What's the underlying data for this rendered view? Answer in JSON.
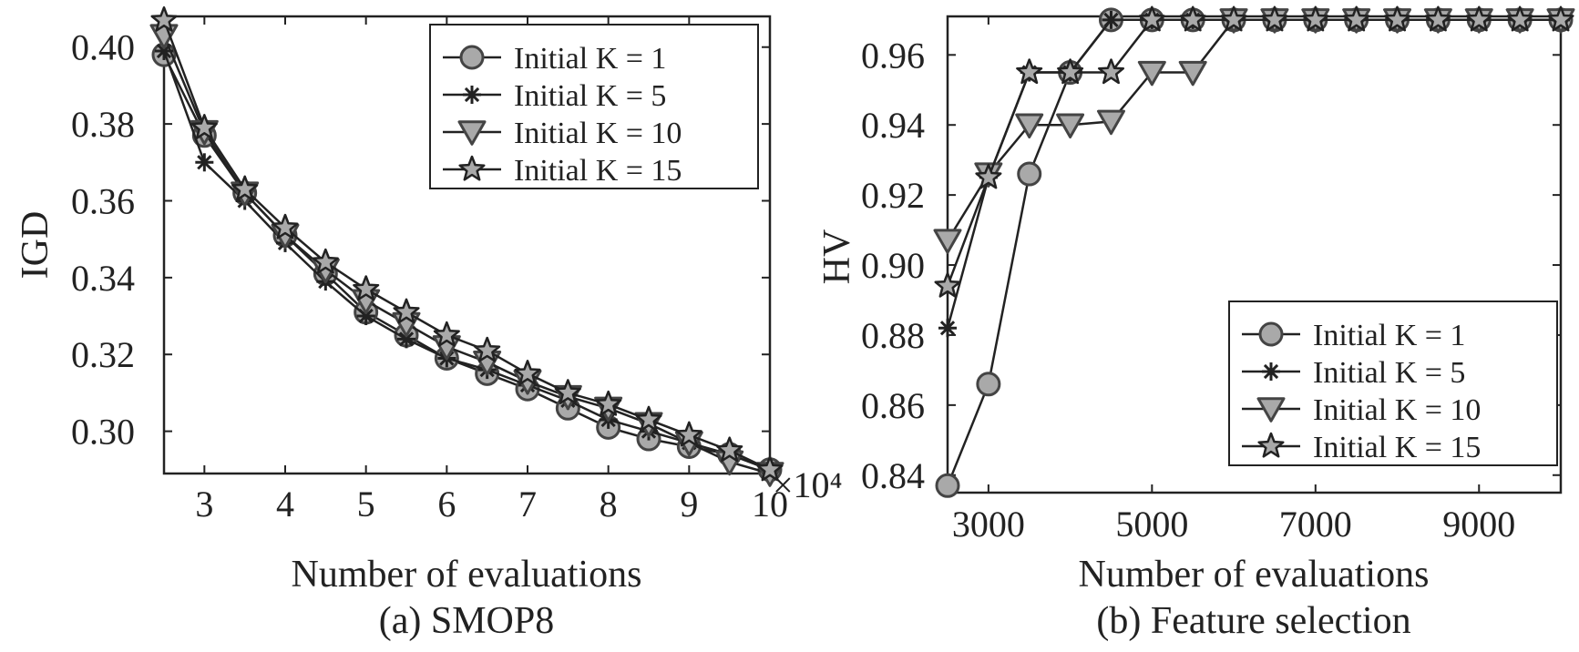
{
  "chart_data": [
    {
      "type": "line",
      "caption": "(a) SMOP8",
      "xlabel": "Number of evaluations",
      "ylabel": "IGD",
      "x_multiplier": "×10⁴",
      "xlim": [
        2.5,
        10
      ],
      "ylim": [
        0.289,
        0.408
      ],
      "xticks": [
        3,
        4,
        5,
        6,
        7,
        8,
        9,
        10
      ],
      "yticks": [
        0.3,
        0.32,
        0.34,
        0.36,
        0.38,
        0.4
      ],
      "ytick_labels": [
        "0.30",
        "0.32",
        "0.34",
        "0.36",
        "0.38",
        "0.40"
      ],
      "legend_position": "top-right",
      "x": [
        2.5,
        3,
        3.5,
        4,
        4.5,
        5,
        5.5,
        6,
        6.5,
        7,
        7.5,
        8,
        8.5,
        9,
        9.5,
        10
      ],
      "series": [
        {
          "name": "Initial K = 1",
          "marker": "circle",
          "values": [
            0.398,
            0.377,
            0.362,
            0.351,
            0.341,
            0.331,
            0.325,
            0.319,
            0.315,
            0.311,
            0.306,
            0.301,
            0.298,
            0.296,
            0.294,
            0.29
          ]
        },
        {
          "name": "Initial K = 5",
          "marker": "asterisk",
          "values": [
            0.399,
            0.37,
            0.36,
            0.349,
            0.339,
            0.33,
            0.324,
            0.319,
            0.316,
            0.312,
            0.308,
            0.303,
            0.3,
            0.297,
            0.294,
            0.29
          ]
        },
        {
          "name": "Initial K = 10",
          "marker": "triangle-down",
          "values": [
            0.403,
            0.378,
            0.362,
            0.351,
            0.342,
            0.334,
            0.328,
            0.322,
            0.318,
            0.313,
            0.309,
            0.306,
            0.302,
            0.297,
            0.292,
            0.289
          ]
        },
        {
          "name": "Initial K = 15",
          "marker": "star",
          "values": [
            0.407,
            0.379,
            0.363,
            0.353,
            0.344,
            0.337,
            0.331,
            0.325,
            0.321,
            0.315,
            0.31,
            0.307,
            0.303,
            0.299,
            0.295,
            0.29
          ]
        }
      ]
    },
    {
      "type": "line",
      "caption": "(b) Feature selection",
      "xlabel": "Number of evaluations",
      "ylabel": "HV",
      "xlim": [
        2500,
        10000
      ],
      "ylim": [
        0.835,
        0.971
      ],
      "xticks": [
        3000,
        5000,
        7000,
        9000
      ],
      "yticks": [
        0.84,
        0.86,
        0.88,
        0.9,
        0.92,
        0.94,
        0.96
      ],
      "ytick_labels": [
        "0.84",
        "0.86",
        "0.88",
        "0.90",
        "0.92",
        "0.94",
        "0.96"
      ],
      "legend_position": "bottom-right",
      "x": [
        2500,
        3000,
        3500,
        4000,
        4500,
        5000,
        5500,
        6000,
        6500,
        7000,
        7500,
        8000,
        8500,
        9000,
        9500,
        10000
      ],
      "series": [
        {
          "name": "Initial K = 1",
          "marker": "circle",
          "values": [
            0.837,
            0.866,
            0.926,
            0.955,
            0.97,
            0.97,
            0.97,
            0.97,
            0.97,
            0.97,
            0.97,
            0.97,
            0.97,
            0.97,
            0.97,
            0.97
          ]
        },
        {
          "name": "Initial K = 5",
          "marker": "asterisk",
          "values": [
            0.882,
            0.925,
            0.955,
            0.955,
            0.97,
            0.97,
            0.97,
            0.97,
            0.97,
            0.97,
            0.97,
            0.97,
            0.97,
            0.97,
            0.97,
            0.97
          ]
        },
        {
          "name": "Initial K = 10",
          "marker": "triangle-down",
          "values": [
            0.907,
            0.926,
            0.94,
            0.94,
            0.941,
            0.955,
            0.955,
            0.97,
            0.97,
            0.97,
            0.97,
            0.97,
            0.97,
            0.97,
            0.97,
            0.97
          ]
        },
        {
          "name": "Initial K = 15",
          "marker": "star",
          "values": [
            0.894,
            0.925,
            0.955,
            0.955,
            0.955,
            0.97,
            0.97,
            0.97,
            0.97,
            0.97,
            0.97,
            0.97,
            0.97,
            0.97,
            0.97,
            0.97
          ]
        }
      ]
    }
  ]
}
